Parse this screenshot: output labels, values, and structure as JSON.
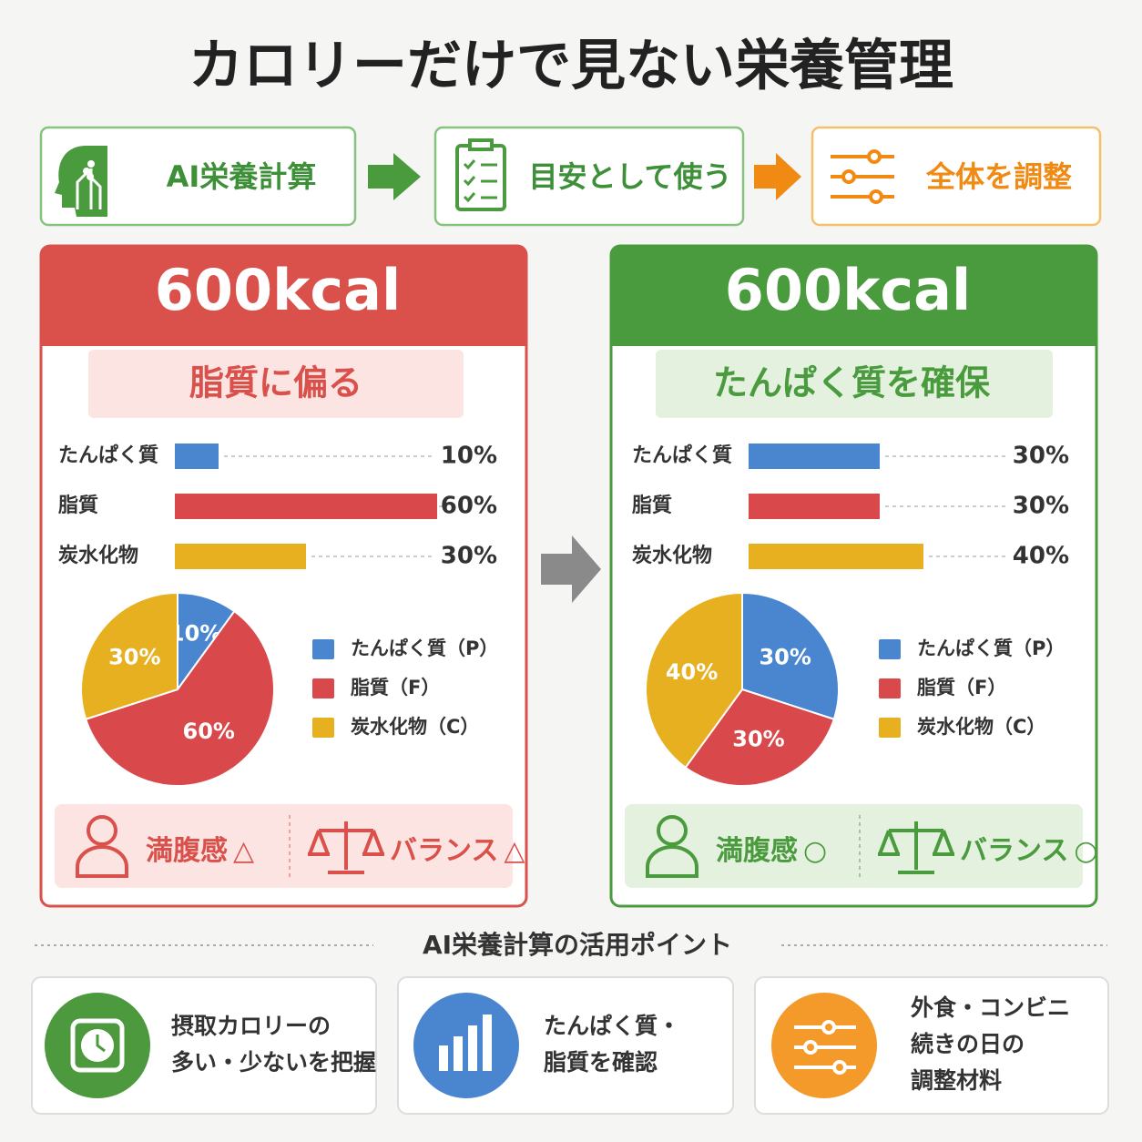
{
  "title": "カロリーだけで見ない栄養管理",
  "steps": [
    "AI栄養計算",
    "目安として使う",
    "全体を調整"
  ],
  "panels": [
    {
      "heading": "600kcal",
      "subheading": "脂質に偏る",
      "theme_color": "#d9514a",
      "categories": [
        "たんぱく質",
        "脂質",
        "炭水化物"
      ],
      "values": [
        10,
        60,
        30
      ],
      "value_labels": [
        "10%",
        "60%",
        "30%"
      ],
      "legend": [
        "たんぱく質（P）",
        "脂質（F）",
        "炭水化物（C）"
      ],
      "colors": [
        "#4a86d0",
        "#d9484a",
        "#e7b021"
      ],
      "status": [
        {
          "label": "満腹感",
          "mark": "△"
        },
        {
          "label": "バランス",
          "mark": "△"
        }
      ]
    },
    {
      "heading": "600kcal",
      "subheading": "たんぱく質を確保",
      "theme_color": "#4a9a3e",
      "categories": [
        "たんぱく質",
        "脂質",
        "炭水化物"
      ],
      "values": [
        30,
        30,
        40
      ],
      "value_labels": [
        "30%",
        "30%",
        "40%"
      ],
      "legend": [
        "たんぱく質（P）",
        "脂質（F）",
        "炭水化物（C）"
      ],
      "colors": [
        "#4a86d0",
        "#d9484a",
        "#e7b021"
      ],
      "status": [
        {
          "label": "満腹感",
          "mark": "○"
        },
        {
          "label": "バランス",
          "mark": "○"
        }
      ]
    }
  ],
  "points_title": "AI栄養計算の活用ポイント",
  "points": [
    [
      "摂取カロリーの",
      "多い・少ないを把握"
    ],
    [
      "たんぱく質・",
      "脂質を確認"
    ],
    [
      "外食・コンビニ",
      "続きの日の",
      "調整材料"
    ]
  ]
}
